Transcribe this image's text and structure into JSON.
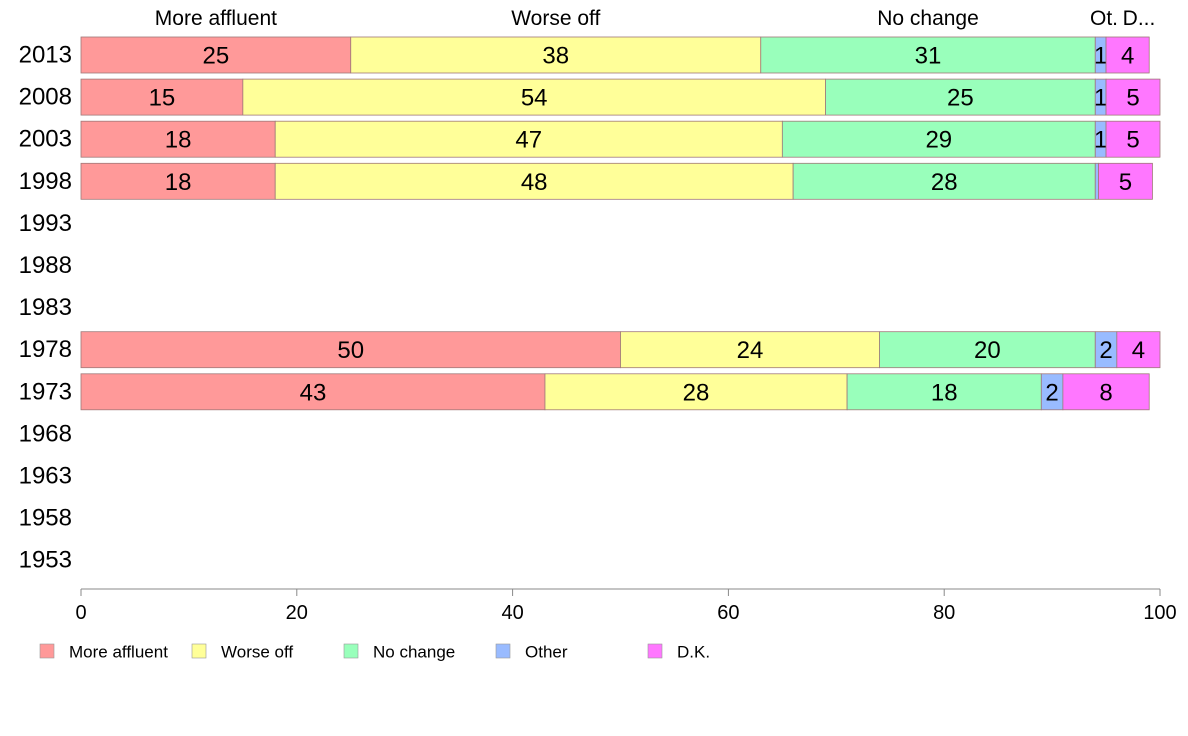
{
  "chart_data": {
    "type": "bar",
    "orientation": "horizontal",
    "stacked": true,
    "categories": [
      "2013",
      "2008",
      "2003",
      "1998",
      "1993",
      "1988",
      "1983",
      "1978",
      "1973",
      "1968",
      "1963",
      "1958",
      "1953"
    ],
    "series": [
      {
        "name": "More affluent",
        "color": "#ff9999",
        "values": [
          25,
          15,
          18,
          18,
          null,
          null,
          null,
          50,
          43,
          null,
          null,
          null,
          null
        ]
      },
      {
        "name": "Worse off",
        "color": "#ffff99",
        "values": [
          38,
          54,
          47,
          48,
          null,
          null,
          null,
          24,
          28,
          null,
          null,
          null,
          null
        ]
      },
      {
        "name": "No change",
        "color": "#99ffbb",
        "values": [
          31,
          25,
          29,
          28,
          null,
          null,
          null,
          20,
          18,
          null,
          null,
          null,
          null
        ]
      },
      {
        "name": "Other",
        "color": "#99bbff",
        "values": [
          1,
          1,
          1,
          0.3,
          null,
          null,
          null,
          2,
          2,
          null,
          null,
          null,
          null
        ]
      },
      {
        "name": "D.K.",
        "color": "#ff77ff",
        "values": [
          4,
          5,
          5,
          5,
          null,
          null,
          null,
          4,
          8,
          null,
          null,
          null,
          null
        ]
      }
    ],
    "value_labels": [
      [
        "25",
        "15",
        "18",
        "18",
        "",
        "",
        "",
        "50",
        "43",
        "",
        "",
        "",
        ""
      ],
      [
        "38",
        "54",
        "47",
        "48",
        "",
        "",
        "",
        "24",
        "28",
        "",
        "",
        "",
        ""
      ],
      [
        "31",
        "25",
        "29",
        "28",
        "",
        "",
        "",
        "20",
        "18",
        "",
        "",
        "",
        ""
      ],
      [
        "1",
        "1",
        "1",
        "",
        "",
        "",
        "",
        "2",
        "2",
        "",
        "",
        "",
        ""
      ],
      [
        "4",
        "5",
        "5",
        "5",
        "",
        "",
        "",
        "4",
        "8",
        "",
        "",
        "",
        ""
      ]
    ],
    "top_headers": [
      "More affluent",
      "Worse off",
      "No change",
      "Ot.",
      "D..."
    ],
    "xlim": [
      0,
      100
    ],
    "xticks": [
      "0",
      "20",
      "40",
      "60",
      "80",
      "100"
    ],
    "legend_position": "bottom-left",
    "grid": false
  }
}
